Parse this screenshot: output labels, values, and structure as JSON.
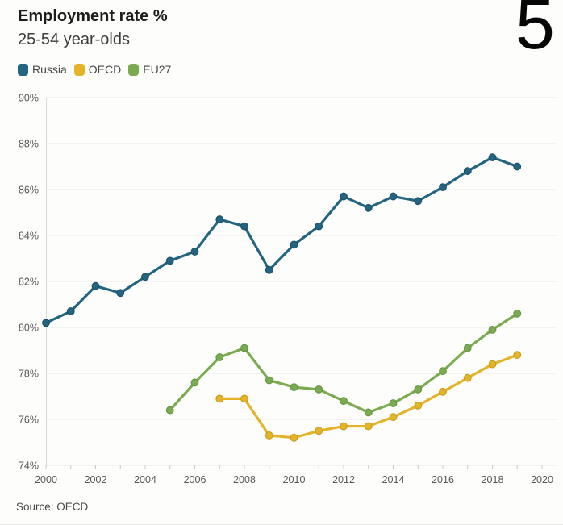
{
  "page": {
    "corner_number": "5",
    "source_note": "Source: OECD",
    "background_color": "#fdfdfb"
  },
  "header": {
    "title": "Employment rate %",
    "subtitle": "25-54 year-olds"
  },
  "chart_data": {
    "type": "line",
    "title": "Employment rate %",
    "subtitle": "25-54 year-olds",
    "xlabel": "",
    "ylabel": "Employment rate %",
    "xlim": [
      2000,
      2020
    ],
    "ylim": [
      74,
      90
    ],
    "x_ticks": [
      2000,
      2002,
      2004,
      2006,
      2008,
      2010,
      2012,
      2014,
      2016,
      2018,
      2020
    ],
    "y_ticks": [
      74,
      76,
      78,
      80,
      82,
      84,
      86,
      88,
      90
    ],
    "y_tick_suffix": "%",
    "grid": true,
    "legend_position": "top-left",
    "axis_text_color": "#565656",
    "grid_color": "#e9e9e7",
    "axis_line_color": "#d8d8d6",
    "tick_color": "#c9c9c7",
    "series": [
      {
        "name": "Russia",
        "color": "#236480",
        "marker_stroke": "#1a4f66",
        "start_year": 2000,
        "values": [
          80.2,
          80.7,
          81.8,
          81.5,
          82.2,
          82.9,
          83.3,
          84.7,
          84.4,
          82.5,
          83.6,
          84.4,
          85.7,
          85.2,
          85.7,
          85.5,
          86.1,
          86.8,
          87.4,
          87.0
        ]
      },
      {
        "name": "OECD",
        "color": "#e3b42a",
        "marker_stroke": "#c59a18",
        "start_year": 2007,
        "values": [
          76.9,
          76.9,
          75.3,
          75.2,
          75.5,
          75.7,
          75.7,
          76.1,
          76.6,
          77.2,
          77.8,
          78.4,
          78.8
        ]
      },
      {
        "name": "EU27",
        "color": "#7bab50",
        "marker_stroke": "#639240",
        "start_year": 2005,
        "values": [
          76.4,
          77.6,
          78.7,
          79.1,
          77.7,
          77.4,
          77.3,
          76.8,
          76.3,
          76.7,
          77.3,
          78.1,
          79.1,
          79.9,
          80.6
        ]
      }
    ]
  }
}
